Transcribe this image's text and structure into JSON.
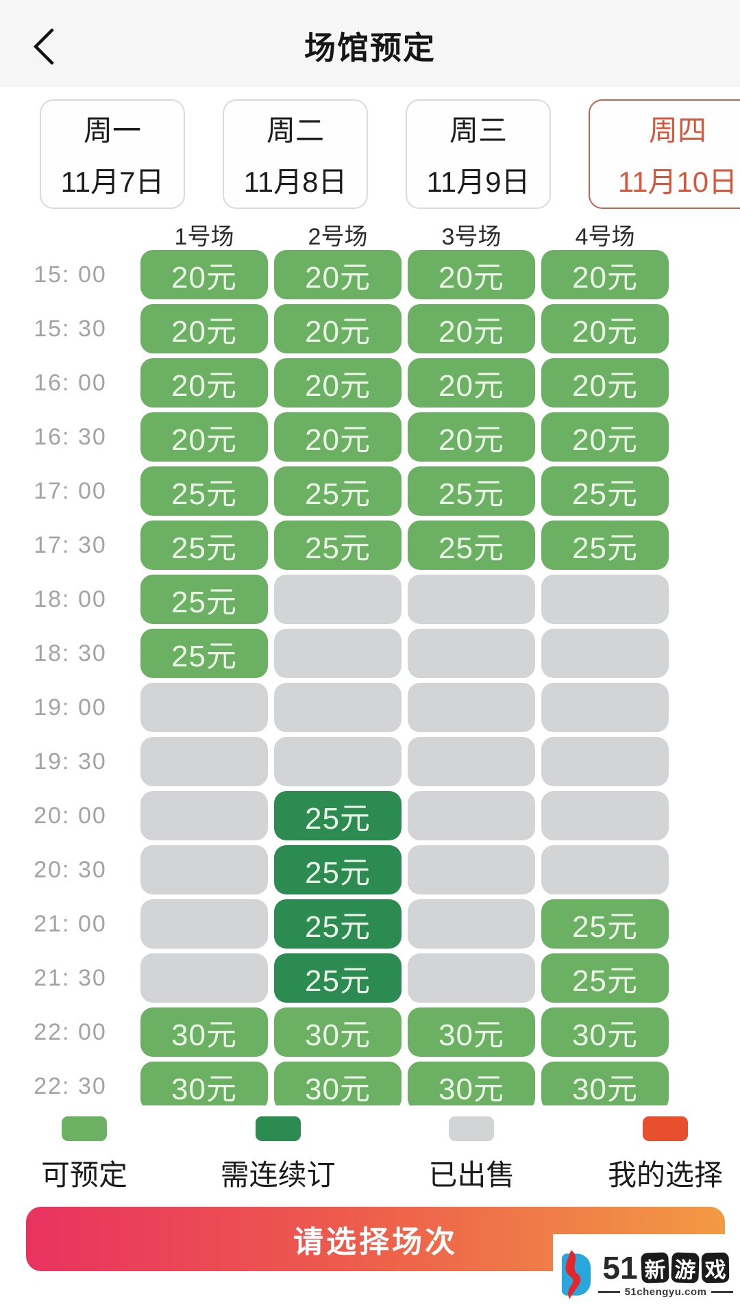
{
  "header": {
    "title": "场馆预定"
  },
  "date_tabs": [
    {
      "weekday": "周一",
      "date": "11月7日",
      "selected": false
    },
    {
      "weekday": "周二",
      "date": "11月8日",
      "selected": false
    },
    {
      "weekday": "周三",
      "date": "11月9日",
      "selected": false
    },
    {
      "weekday": "周四",
      "date": "11月10日",
      "selected": true
    }
  ],
  "courts": [
    "1号场",
    "2号场",
    "3号场",
    "4号场"
  ],
  "colors": {
    "available": "#6cb163",
    "consecutive": "#2b8b51",
    "sold": "#d2d4d5",
    "my_choice": "#e8502d",
    "selected_tab_text": "#d4593c"
  },
  "slots": {
    "rows": [
      {
        "time": "15: 00",
        "cells": [
          {
            "price": "20元",
            "status": "available"
          },
          {
            "price": "20元",
            "status": "available"
          },
          {
            "price": "20元",
            "status": "available"
          },
          {
            "price": "20元",
            "status": "available"
          }
        ]
      },
      {
        "time": "15: 30",
        "cells": [
          {
            "price": "20元",
            "status": "available"
          },
          {
            "price": "20元",
            "status": "available"
          },
          {
            "price": "20元",
            "status": "available"
          },
          {
            "price": "20元",
            "status": "available"
          }
        ]
      },
      {
        "time": "16: 00",
        "cells": [
          {
            "price": "20元",
            "status": "available"
          },
          {
            "price": "20元",
            "status": "available"
          },
          {
            "price": "20元",
            "status": "available"
          },
          {
            "price": "20元",
            "status": "available"
          }
        ]
      },
      {
        "time": "16: 30",
        "cells": [
          {
            "price": "20元",
            "status": "available"
          },
          {
            "price": "20元",
            "status": "available"
          },
          {
            "price": "20元",
            "status": "available"
          },
          {
            "price": "20元",
            "status": "available"
          }
        ]
      },
      {
        "time": "17: 00",
        "cells": [
          {
            "price": "25元",
            "status": "available"
          },
          {
            "price": "25元",
            "status": "available"
          },
          {
            "price": "25元",
            "status": "available"
          },
          {
            "price": "25元",
            "status": "available"
          }
        ]
      },
      {
        "time": "17: 30",
        "cells": [
          {
            "price": "25元",
            "status": "available"
          },
          {
            "price": "25元",
            "status": "available"
          },
          {
            "price": "25元",
            "status": "available"
          },
          {
            "price": "25元",
            "status": "available"
          }
        ]
      },
      {
        "time": "18: 00",
        "cells": [
          {
            "price": "25元",
            "status": "available"
          },
          {
            "price": "",
            "status": "sold"
          },
          {
            "price": "",
            "status": "sold"
          },
          {
            "price": "",
            "status": "sold"
          }
        ]
      },
      {
        "time": "18: 30",
        "cells": [
          {
            "price": "25元",
            "status": "available"
          },
          {
            "price": "",
            "status": "sold"
          },
          {
            "price": "",
            "status": "sold"
          },
          {
            "price": "",
            "status": "sold"
          }
        ]
      },
      {
        "time": "19: 00",
        "cells": [
          {
            "price": "",
            "status": "sold"
          },
          {
            "price": "",
            "status": "sold"
          },
          {
            "price": "",
            "status": "sold"
          },
          {
            "price": "",
            "status": "sold"
          }
        ]
      },
      {
        "time": "19: 30",
        "cells": [
          {
            "price": "",
            "status": "sold"
          },
          {
            "price": "",
            "status": "sold"
          },
          {
            "price": "",
            "status": "sold"
          },
          {
            "price": "",
            "status": "sold"
          }
        ]
      },
      {
        "time": "20: 00",
        "cells": [
          {
            "price": "",
            "status": "sold"
          },
          {
            "price": "25元",
            "status": "consecutive"
          },
          {
            "price": "",
            "status": "sold"
          },
          {
            "price": "",
            "status": "sold"
          }
        ]
      },
      {
        "time": "20: 30",
        "cells": [
          {
            "price": "",
            "status": "sold"
          },
          {
            "price": "25元",
            "status": "consecutive"
          },
          {
            "price": "",
            "status": "sold"
          },
          {
            "price": "",
            "status": "sold"
          }
        ]
      },
      {
        "time": "21: 00",
        "cells": [
          {
            "price": "",
            "status": "sold"
          },
          {
            "price": "25元",
            "status": "consecutive"
          },
          {
            "price": "",
            "status": "sold"
          },
          {
            "price": "25元",
            "status": "available"
          }
        ]
      },
      {
        "time": "21: 30",
        "cells": [
          {
            "price": "",
            "status": "sold"
          },
          {
            "price": "25元",
            "status": "consecutive"
          },
          {
            "price": "",
            "status": "sold"
          },
          {
            "price": "25元",
            "status": "available"
          }
        ]
      },
      {
        "time": "22: 00",
        "cells": [
          {
            "price": "30元",
            "status": "available"
          },
          {
            "price": "30元",
            "status": "available"
          },
          {
            "price": "30元",
            "status": "available"
          },
          {
            "price": "30元",
            "status": "available"
          }
        ]
      },
      {
        "time": "22: 30",
        "cells": [
          {
            "price": "30元",
            "status": "available"
          },
          {
            "price": "30元",
            "status": "available"
          },
          {
            "price": "30元",
            "status": "available"
          },
          {
            "price": "30元",
            "status": "available"
          }
        ]
      }
    ]
  },
  "legend": [
    {
      "label": "可预定",
      "status": "available",
      "color": "#6cb163"
    },
    {
      "label": "需连续订",
      "status": "consecutive",
      "color": "#2b8b51"
    },
    {
      "label": "已出售",
      "status": "sold",
      "color": "#d2d4d5"
    },
    {
      "label": "我的选择",
      "status": "my_choice",
      "color": "#e8502d"
    }
  ],
  "footer": {
    "button_label": "请选择场次"
  },
  "watermark": {
    "prefix": "51",
    "stamps": [
      "新",
      "游",
      "戏"
    ],
    "site": "51chengyu.com"
  }
}
